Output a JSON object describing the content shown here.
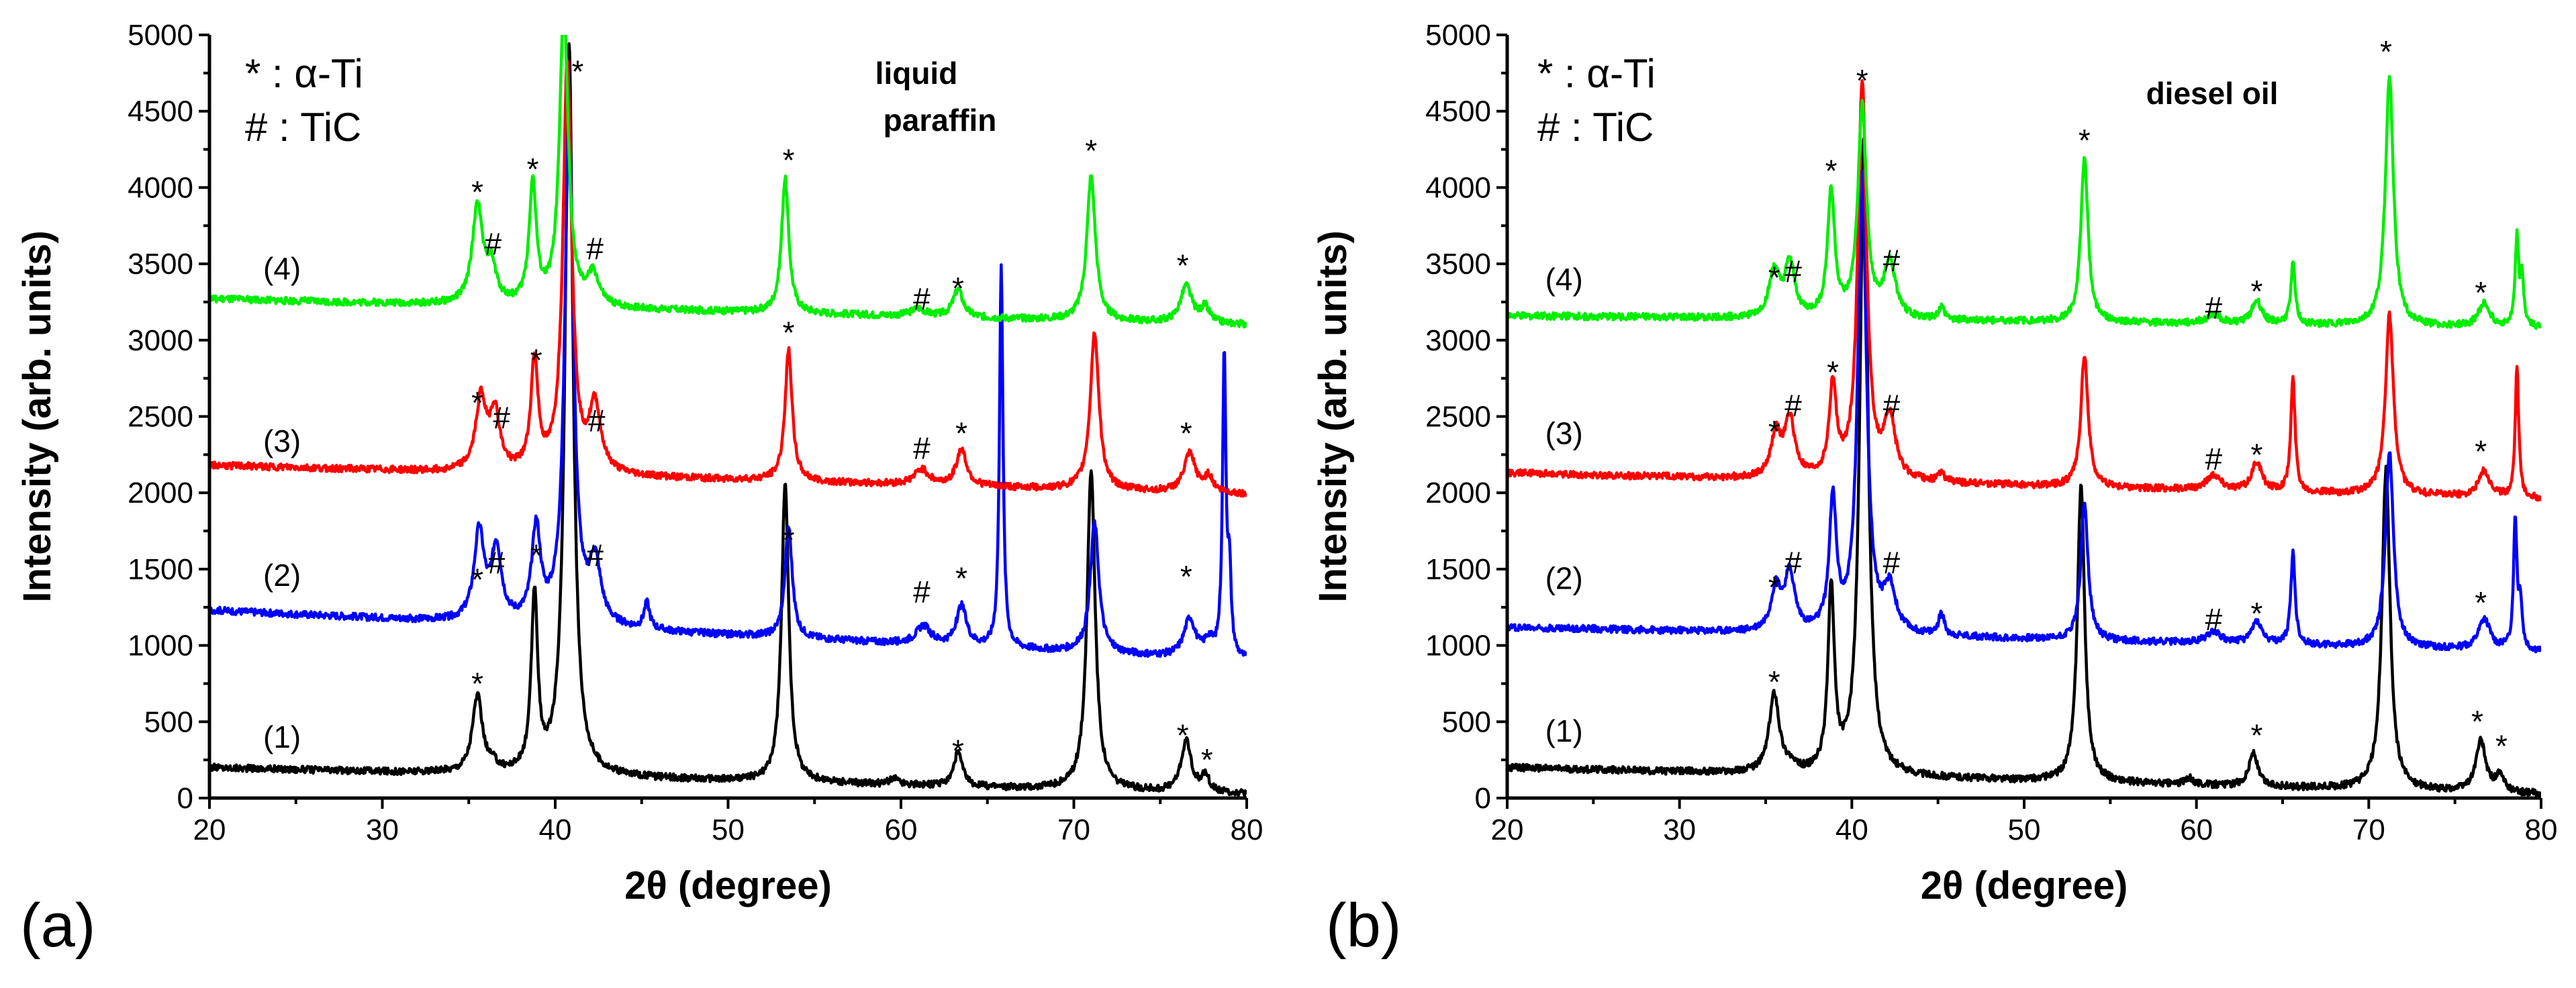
{
  "chart_data": [
    {
      "type": "line",
      "panel_letter": "(a)",
      "medium_label": [
        "liquid",
        "paraffin"
      ],
      "xlabel": "2θ (degree)",
      "ylabel": "Intensity (arb. units)",
      "xlim": [
        20,
        80
      ],
      "ylim": [
        0,
        5000
      ],
      "xticks": [
        20,
        30,
        40,
        50,
        60,
        70,
        80
      ],
      "yticks": [
        0,
        500,
        1000,
        1500,
        2000,
        2500,
        3000,
        3500,
        4000,
        4500,
        5000
      ],
      "legend": {
        "position": "top-left",
        "entries": [
          "* : α-Ti",
          "# : TiC"
        ]
      },
      "series": [
        {
          "name": "(1)",
          "color": "#000000",
          "baseline": 200,
          "end_baseline": 25,
          "peaks": [
            [
              35.5,
              500,
              0.35
            ],
            [
              36.4,
              40,
              0.3
            ],
            [
              38.8,
              1150,
              0.22
            ],
            [
              40.8,
              4800,
              0.28
            ],
            [
              53.3,
              1950,
              0.25
            ],
            [
              59.6,
              40,
              0.3
            ],
            [
              63.3,
              220,
              0.3
            ],
            [
              71.0,
              2100,
              0.28
            ],
            [
              76.5,
              330,
              0.35
            ],
            [
              77.6,
              100,
              0.3
            ]
          ]
        },
        {
          "name": "(2)",
          "color": "#0000ff",
          "baseline": 1230,
          "end_baseline": 900,
          "peaks": [
            [
              35.6,
              580,
              0.35
            ],
            [
              36.6,
              470,
              0.35
            ],
            [
              38.9,
              610,
              0.3
            ],
            [
              40.8,
              3320,
              0.3
            ],
            [
              42.3,
              400,
              0.4
            ],
            [
              45.3,
              170,
              0.2
            ],
            [
              53.5,
              730,
              0.25
            ],
            [
              61.3,
              120,
              0.5
            ],
            [
              63.5,
              260,
              0.35
            ],
            [
              65.8,
              2520,
              0.12
            ],
            [
              71.2,
              850,
              0.3
            ],
            [
              76.7,
              250,
              0.4
            ],
            [
              77.8,
              100,
              0.3
            ],
            [
              78.7,
              1960,
              0.12
            ],
            [
              79.0,
              500,
              0.12
            ]
          ]
        },
        {
          "name": "(3)",
          "color": "#ff0000",
          "baseline": 2180,
          "end_baseline": 1990,
          "peaks": [
            [
              35.7,
              470,
              0.35
            ],
            [
              36.5,
              380,
              0.35
            ],
            [
              38.8,
              720,
              0.25
            ],
            [
              40.7,
              2700,
              0.3
            ],
            [
              42.3,
              430,
              0.4
            ],
            [
              53.5,
              860,
              0.25
            ],
            [
              61.2,
              100,
              0.5
            ],
            [
              63.5,
              240,
              0.35
            ],
            [
              71.2,
              1030,
              0.3
            ],
            [
              76.7,
              250,
              0.4
            ],
            [
              77.8,
              100,
              0.3
            ]
          ]
        },
        {
          "name": "(4)",
          "color": "#00ee00",
          "baseline": 3270,
          "end_baseline": 3100,
          "peaks": [
            [
              35.5,
              640,
              0.35
            ],
            [
              36.3,
              230,
              0.35
            ],
            [
              38.7,
              790,
              0.25
            ],
            [
              40.5,
              1950,
              0.3
            ],
            [
              42.2,
              200,
              0.4
            ],
            [
              53.3,
              880,
              0.25
            ],
            [
              61.0,
              50,
              0.5
            ],
            [
              63.3,
              180,
              0.35
            ],
            [
              71.0,
              950,
              0.3
            ],
            [
              76.5,
              240,
              0.4
            ],
            [
              77.6,
              100,
              0.3
            ]
          ]
        }
      ],
      "curve_labels": [
        {
          "text": "(1)",
          "x": 24.2,
          "y": 330
        },
        {
          "text": "(2)",
          "x": 24.2,
          "y": 1390
        },
        {
          "text": "(3)",
          "x": 24.2,
          "y": 2270
        },
        {
          "text": "(4)",
          "x": 24.2,
          "y": 3400
        }
      ],
      "markers": [
        {
          "text": "*",
          "x": 35.5,
          "y": 680
        },
        {
          "text": "*",
          "x": 76.3,
          "y": 340
        },
        {
          "text": "*",
          "x": 77.7,
          "y": 180
        },
        {
          "text": "*",
          "x": 63.3,
          "y": 240
        },
        {
          "text": "*",
          "x": 35.5,
          "y": 1360
        },
        {
          "text": "#",
          "x": 36.6,
          "y": 1470
        },
        {
          "text": "*",
          "x": 38.9,
          "y": 1520
        },
        {
          "text": "#",
          "x": 42.3,
          "y": 1520
        },
        {
          "text": "*",
          "x": 53.5,
          "y": 1620
        },
        {
          "text": "#",
          "x": 61.2,
          "y": 1280
        },
        {
          "text": "*",
          "x": 63.5,
          "y": 1370
        },
        {
          "text": "*",
          "x": 76.5,
          "y": 1380
        },
        {
          "text": "*",
          "x": 35.5,
          "y": 2520
        },
        {
          "text": "#",
          "x": 36.9,
          "y": 2420
        },
        {
          "text": "*",
          "x": 38.9,
          "y": 2800
        },
        {
          "text": "#",
          "x": 42.4,
          "y": 2400
        },
        {
          "text": "*",
          "x": 53.5,
          "y": 2980
        },
        {
          "text": "#",
          "x": 61.2,
          "y": 2220
        },
        {
          "text": "*",
          "x": 63.5,
          "y": 2320
        },
        {
          "text": "*",
          "x": 76.5,
          "y": 2320
        },
        {
          "text": "*",
          "x": 35.5,
          "y": 3900
        },
        {
          "text": "#",
          "x": 36.4,
          "y": 3560
        },
        {
          "text": "*",
          "x": 38.7,
          "y": 4050
        },
        {
          "text": "*",
          "x": 41.3,
          "y": 4690
        },
        {
          "text": "#",
          "x": 42.3,
          "y": 3530
        },
        {
          "text": "*",
          "x": 53.5,
          "y": 4110
        },
        {
          "text": "#",
          "x": 61.2,
          "y": 3200
        },
        {
          "text": "*",
          "x": 63.3,
          "y": 3270
        },
        {
          "text": "*",
          "x": 71.0,
          "y": 4170
        },
        {
          "text": "*",
          "x": 76.3,
          "y": 3420
        }
      ]
    },
    {
      "type": "line",
      "panel_letter": "(b)",
      "medium_label": [
        "diesel oil"
      ],
      "xlabel": "2θ (degree)",
      "ylabel": "Intensity (arb. units)",
      "xlim": [
        20,
        80
      ],
      "ylim": [
        0,
        5000
      ],
      "xticks": [
        20,
        30,
        40,
        50,
        60,
        70,
        80
      ],
      "yticks": [
        0,
        500,
        1000,
        1500,
        2000,
        2500,
        3000,
        3500,
        4000,
        4500,
        5000
      ],
      "legend": {
        "position": "top-left",
        "entries": [
          "* : α-Ti",
          "# : TiC"
        ]
      },
      "series": [
        {
          "name": "(1)",
          "color": "#000000",
          "baseline": 200,
          "end_baseline": 25,
          "peaks": [
            [
              35.5,
              520,
              0.35
            ],
            [
              36.4,
              40,
              0.3
            ],
            [
              38.8,
              1200,
              0.22
            ],
            [
              40.7,
              4200,
              0.28
            ],
            [
              53.3,
              1950,
              0.25
            ],
            [
              59.6,
              40,
              0.3
            ],
            [
              63.3,
              220,
              0.3
            ],
            [
              71.0,
              2100,
              0.28
            ],
            [
              76.5,
              330,
              0.35
            ],
            [
              77.6,
              100,
              0.3
            ]
          ]
        },
        {
          "name": "(2)",
          "color": "#0000ff",
          "baseline": 1120,
          "end_baseline": 960,
          "peaks": [
            [
              35.6,
              280,
              0.35
            ],
            [
              36.4,
              370,
              0.35
            ],
            [
              38.9,
              850,
              0.25
            ],
            [
              40.6,
              3000,
              0.3
            ],
            [
              42.2,
              280,
              0.4
            ],
            [
              45.2,
              140,
              0.2
            ],
            [
              53.5,
              900,
              0.25
            ],
            [
              61.0,
              80,
              0.5
            ],
            [
              63.5,
              150,
              0.35
            ],
            [
              65.6,
              600,
              0.15
            ],
            [
              71.2,
              1280,
              0.28
            ],
            [
              76.7,
              200,
              0.4
            ],
            [
              78.5,
              850,
              0.12
            ],
            [
              78.8,
              300,
              0.12
            ]
          ]
        },
        {
          "name": "(3)",
          "color": "#ff0000",
          "baseline": 2130,
          "end_baseline": 1960,
          "peaks": [
            [
              35.6,
              280,
              0.35
            ],
            [
              36.4,
              380,
              0.35
            ],
            [
              38.9,
              600,
              0.25
            ],
            [
              40.6,
              2600,
              0.3
            ],
            [
              42.2,
              390,
              0.4
            ],
            [
              45.2,
              60,
              0.2
            ],
            [
              53.5,
              870,
              0.25
            ],
            [
              61.0,
              100,
              0.5
            ],
            [
              63.5,
              190,
              0.35
            ],
            [
              65.6,
              740,
              0.15
            ],
            [
              71.2,
              1180,
              0.28
            ],
            [
              76.7,
              170,
              0.4
            ],
            [
              78.6,
              870,
              0.12
            ]
          ]
        },
        {
          "name": "(4)",
          "color": "#00ee00",
          "baseline": 3160,
          "end_baseline": 3080,
          "peaks": [
            [
              35.5,
              300,
              0.35
            ],
            [
              36.4,
              350,
              0.35
            ],
            [
              38.8,
              830,
              0.25
            ],
            [
              40.6,
              1380,
              0.3
            ],
            [
              42.2,
              360,
              0.4
            ],
            [
              45.2,
              80,
              0.2
            ],
            [
              53.5,
              1070,
              0.25
            ],
            [
              61.0,
              60,
              0.5
            ],
            [
              63.5,
              150,
              0.35
            ],
            [
              65.6,
              400,
              0.15
            ],
            [
              71.2,
              1640,
              0.28
            ],
            [
              76.7,
              150,
              0.4
            ],
            [
              78.6,
              580,
              0.12
            ],
            [
              78.9,
              300,
              0.12
            ]
          ]
        }
      ],
      "curve_labels": [
        {
          "text": "(1)",
          "x": 23.3,
          "y": 370
        },
        {
          "text": "(2)",
          "x": 23.3,
          "y": 1370
        },
        {
          "text": "(3)",
          "x": 23.3,
          "y": 2320
        },
        {
          "text": "(4)",
          "x": 23.3,
          "y": 3330
        }
      ],
      "markers": [
        {
          "text": "*",
          "x": 35.5,
          "y": 690
        },
        {
          "text": "*",
          "x": 63.5,
          "y": 340
        },
        {
          "text": "*",
          "x": 76.3,
          "y": 430
        },
        {
          "text": "*",
          "x": 77.7,
          "y": 270
        },
        {
          "text": "*",
          "x": 35.5,
          "y": 1310
        },
        {
          "text": "#",
          "x": 36.6,
          "y": 1470
        },
        {
          "text": "#",
          "x": 42.3,
          "y": 1470
        },
        {
          "text": "#",
          "x": 61.0,
          "y": 1100
        },
        {
          "text": "*",
          "x": 63.5,
          "y": 1140
        },
        {
          "text": "*",
          "x": 76.5,
          "y": 1210
        },
        {
          "text": "*",
          "x": 35.5,
          "y": 2330
        },
        {
          "text": "#",
          "x": 36.6,
          "y": 2500
        },
        {
          "text": "*",
          "x": 38.9,
          "y": 2720
        },
        {
          "text": "#",
          "x": 42.3,
          "y": 2500
        },
        {
          "text": "#",
          "x": 61.0,
          "y": 2150
        },
        {
          "text": "*",
          "x": 63.5,
          "y": 2180
        },
        {
          "text": "*",
          "x": 76.5,
          "y": 2200
        },
        {
          "text": "*",
          "x": 35.5,
          "y": 3340
        },
        {
          "text": "#",
          "x": 36.6,
          "y": 3380
        },
        {
          "text": "*",
          "x": 38.8,
          "y": 4040
        },
        {
          "text": "*",
          "x": 40.6,
          "y": 4630
        },
        {
          "text": "#",
          "x": 42.3,
          "y": 3450
        },
        {
          "text": "*",
          "x": 53.5,
          "y": 4240
        },
        {
          "text": "#",
          "x": 61.0,
          "y": 3140
        },
        {
          "text": "*",
          "x": 63.5,
          "y": 3250
        },
        {
          "text": "*",
          "x": 71.0,
          "y": 4820
        },
        {
          "text": "*",
          "x": 76.5,
          "y": 3240
        }
      ]
    }
  ]
}
